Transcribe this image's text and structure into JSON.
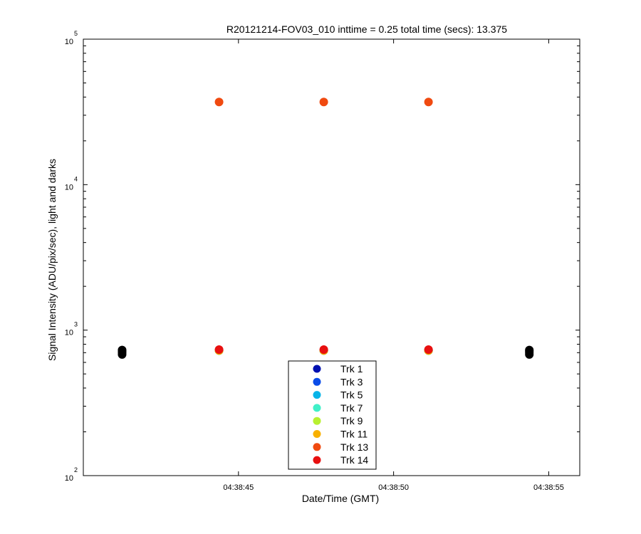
{
  "chart_data": {
    "type": "scatter",
    "title": "R20121214-FOV03_010 inttime = 0.25 total time (secs): 13.375",
    "xlabel": "Date/Time (GMT)",
    "ylabel": "Signal Intensity (ADU/pix/sec), light and darks",
    "y_scale": "log",
    "ylim": [
      100,
      100000
    ],
    "xlim": [
      "04:38:40",
      "04:38:56"
    ],
    "x_ticks": [
      "04:38:45",
      "04:38:50",
      "04:38:55"
    ],
    "y_ticks": [
      {
        "base": "10",
        "exp": "2"
      },
      {
        "base": "10",
        "exp": "3"
      },
      {
        "base": "10",
        "exp": "4"
      },
      {
        "base": "10",
        "exp": "5"
      }
    ],
    "grid": false,
    "legend_position": "bottom-center",
    "series": [
      {
        "name": "Trk 1",
        "color": "#0010b0",
        "x": [
          "04:38:44.375",
          "04:38:47.75",
          "04:38:51.125"
        ],
        "y": [
          725,
          725,
          725
        ]
      },
      {
        "name": "Trk 3",
        "color": "#0a4ce8",
        "x": [
          "04:38:44.375",
          "04:38:47.75",
          "04:38:51.125"
        ],
        "y": [
          725,
          725,
          725
        ]
      },
      {
        "name": "Trk 5",
        "color": "#08b4e8",
        "x": [
          "04:38:44.375",
          "04:38:47.75",
          "04:38:51.125"
        ],
        "y": [
          725,
          725,
          725
        ]
      },
      {
        "name": "Trk 7",
        "color": "#40f0c8",
        "x": [
          "04:38:44.375",
          "04:38:47.75",
          "04:38:51.125"
        ],
        "y": [
          725,
          725,
          725
        ]
      },
      {
        "name": "Trk 9",
        "color": "#b8f030",
        "x": [
          "04:38:44.375",
          "04:38:47.75",
          "04:38:51.125"
        ],
        "y": [
          725,
          725,
          725
        ]
      },
      {
        "name": "Trk 11",
        "color": "#f8b000",
        "x": [
          "04:38:44.375",
          "04:38:47.75",
          "04:38:51.125"
        ],
        "y": [
          725,
          725,
          725
        ]
      },
      {
        "name": "Trk 13",
        "color": "#f04a10",
        "x": [
          "04:38:44.375",
          "04:38:47.75",
          "04:38:51.125"
        ],
        "y": [
          37000,
          37000,
          37000
        ]
      },
      {
        "name": "Trk 14",
        "color": "#e81010",
        "x": [
          "04:38:44.375",
          "04:38:47.75",
          "04:38:51.125"
        ],
        "y": [
          735,
          735,
          735
        ]
      },
      {
        "name": "",
        "color": "#000000",
        "x": [
          "04:38:41.25",
          "04:38:41.25",
          "04:38:41.25",
          "04:38:41.25",
          "04:38:54.375",
          "04:38:54.375",
          "04:38:54.375",
          "04:38:54.375"
        ],
        "y": [
          680,
          700,
          715,
          730,
          680,
          700,
          715,
          730
        ]
      }
    ]
  }
}
